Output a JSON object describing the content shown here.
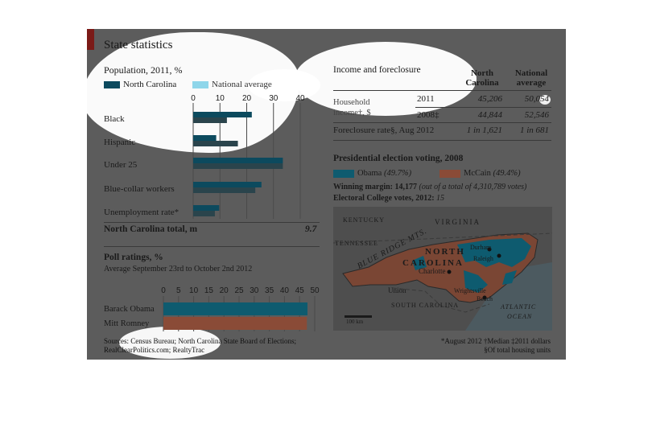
{
  "colors": {
    "panel": "#5c5c5c",
    "nc": "#0c4a5e",
    "national": "#2a444c",
    "obama": "#0e5b6f",
    "mccain": "#8a4b37",
    "text": "#1a1a1a",
    "accent": "#7b1a17"
  },
  "header": {
    "title": "State statistics"
  },
  "population": {
    "title": "Population, 2011, %",
    "legend_nc": "North Carolina",
    "legend_national": "National average",
    "total_label": "North Carolina total, m",
    "total_value": "9.7"
  },
  "income": {
    "title": "Income and foreclosure",
    "col_nc": [
      "North",
      "Carolina"
    ],
    "col_nat": [
      "National",
      "average"
    ],
    "rows": [
      {
        "label": [
          "Household",
          "income†, $"
        ],
        "year": "2011",
        "nc": "45,206",
        "nat": "50,054"
      },
      {
        "label": [
          "",
          ""
        ],
        "year": "2008‡",
        "nc": "44,844",
        "nat": "52,546"
      },
      {
        "label": [
          "Foreclosure rate§, Aug 2012",
          ""
        ],
        "year": "",
        "nc": "1 in 1,621",
        "nat": "1 in 681"
      }
    ]
  },
  "election": {
    "title": "Presidential election voting, 2008",
    "obama": "Obama",
    "obama_pct": "(49.7%)",
    "mccain": "McCain",
    "mccain_pct": "(49.4%)",
    "margin_label": "Winning margin: 14,177",
    "margin_note": "(out of a total of 4,310,789 votes)",
    "ec_label": "Electoral College votes, 2012:",
    "ec_value": "15"
  },
  "map": {
    "labels": [
      "KENTUCKY",
      "VIRGINIA",
      "TENNESSEE",
      "BLUE RIDGE MTS.",
      "NORTH",
      "CAROLINA",
      "Durham",
      "Raleigh",
      "Charlotte",
      "Union",
      "Wrightsville",
      "Beach",
      "SOUTH CAROLINA",
      "ATLANTIC",
      "OCEAN",
      "100 km"
    ]
  },
  "polls": {
    "title": "Poll ratings, %",
    "subtitle": "Average September 23rd to October 2nd 2012"
  },
  "footer": {
    "sources": [
      "Sources: Census Bureau; North Carolina State Board of Elections;",
      "RealClearPolitics.com; RealtyTrac"
    ],
    "notes": [
      "*August 2012 †Median ‡2011 dollars",
      "§Of total housing units"
    ]
  },
  "chart_data": [
    {
      "type": "bar",
      "orientation": "horizontal",
      "title": "Population, 2011, %",
      "categories": [
        "Black",
        "Hispanic",
        "Under 25",
        "Blue-collar workers",
        "Unemployment rate*"
      ],
      "series": [
        {
          "name": "North Carolina",
          "values": [
            21.9,
            8.6,
            33.5,
            25.5,
            9.7
          ]
        },
        {
          "name": "National average",
          "values": [
            12.6,
            16.7,
            33.5,
            23.2,
            8.1
          ]
        }
      ],
      "xlim": [
        0,
        40
      ],
      "ticks": [
        0,
        10,
        20,
        30,
        40
      ],
      "legend": "top"
    },
    {
      "type": "bar",
      "orientation": "horizontal",
      "title": "Poll ratings, %",
      "categories": [
        "Barack Obama",
        "Mitt Romney"
      ],
      "series": [
        {
          "values": [
            47.6,
            47.4
          ]
        }
      ],
      "xlim": [
        0,
        50
      ],
      "ticks": [
        0,
        5,
        10,
        15,
        20,
        25,
        30,
        35,
        40,
        45,
        50
      ]
    }
  ]
}
